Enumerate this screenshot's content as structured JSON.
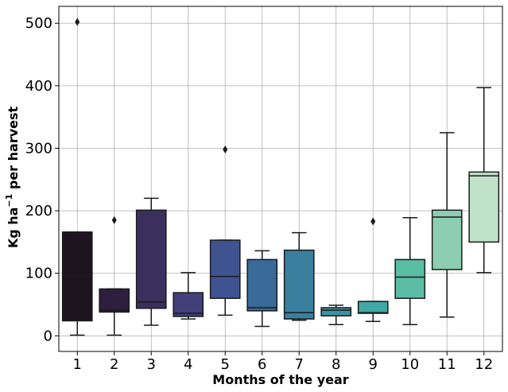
{
  "chart_data": {
    "type": "boxplot",
    "xlabel": "Months of the year",
    "ylabel": "Kg ha",
    "ylabel_sup": "−1",
    "ylabel_rest": " per harvest",
    "categories": [
      "1",
      "2",
      "3",
      "4",
      "5",
      "6",
      "7",
      "8",
      "9",
      "10",
      "11",
      "12"
    ],
    "ylim": [
      -25,
      527
    ],
    "yticks": [
      0,
      100,
      200,
      300,
      400,
      500
    ],
    "grid": true,
    "boxes": [
      {
        "month": "1",
        "whislo": 1,
        "q1": 24,
        "med": 96,
        "q3": 166,
        "whishi": 166,
        "fliers": [
          502
        ],
        "color": "#1d141f"
      },
      {
        "month": "2",
        "whislo": 1,
        "q1": 38,
        "med": 41,
        "q3": 75,
        "whishi": 75,
        "fliers": [
          185
        ],
        "color": "#2d1f3d"
      },
      {
        "month": "3",
        "whislo": 17,
        "q1": 44,
        "med": 54,
        "q3": 201,
        "whishi": 220,
        "fliers": [],
        "color": "#3a2f5d"
      },
      {
        "month": "4",
        "whislo": 27,
        "q1": 31,
        "med": 36,
        "q3": 69,
        "whishi": 101,
        "fliers": [],
        "color": "#433f7a"
      },
      {
        "month": "5",
        "whislo": 33,
        "q1": 60,
        "med": 95,
        "q3": 153,
        "whishi": 153,
        "fliers": [
          298
        ],
        "color": "#3f5390"
      },
      {
        "month": "6",
        "whislo": 15,
        "q1": 40,
        "med": 45,
        "q3": 122,
        "whishi": 136,
        "fliers": [],
        "color": "#3a6a98"
      },
      {
        "month": "7",
        "whislo": 25,
        "q1": 27,
        "med": 37,
        "q3": 137,
        "whishi": 165,
        "fliers": [],
        "color": "#3b7f9f"
      },
      {
        "month": "8",
        "whislo": 18,
        "q1": 32,
        "med": 41,
        "q3": 45,
        "whishi": 49,
        "fliers": [],
        "color": "#3a94a4"
      },
      {
        "month": "9",
        "whislo": 23,
        "q1": 36,
        "med": 37,
        "q3": 55,
        "whishi": 55,
        "fliers": [
          183
        ],
        "color": "#41a9a5"
      },
      {
        "month": "10",
        "whislo": 18,
        "q1": 60,
        "med": 94,
        "q3": 122,
        "whishi": 189,
        "fliers": [],
        "color": "#5abda4"
      },
      {
        "month": "11",
        "whislo": 30,
        "q1": 106,
        "med": 190,
        "q3": 201,
        "whishi": 325,
        "fliers": [],
        "color": "#8dcdb1"
      },
      {
        "month": "12",
        "whislo": 101,
        "q1": 150,
        "med": 256,
        "q3": 262,
        "whishi": 397,
        "fliers": [],
        "color": "#c0e2c9"
      }
    ]
  }
}
